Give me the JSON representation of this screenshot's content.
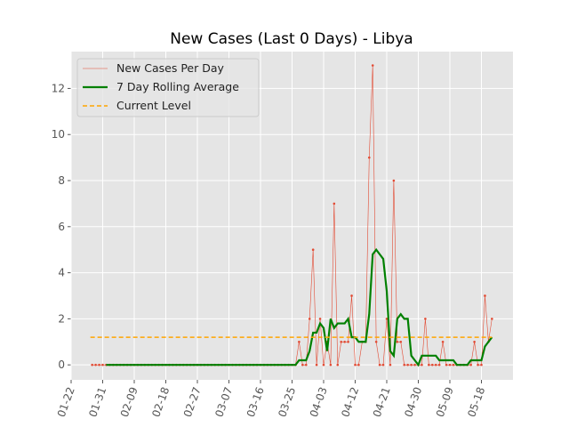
{
  "chart_data": {
    "type": "line",
    "title": "New Cases (Last 0 Days) - Libya",
    "x": [
      "01-28",
      "01-29",
      "01-30",
      "01-31",
      "02-01",
      "02-02",
      "02-03",
      "02-04",
      "02-05",
      "02-06",
      "02-07",
      "02-08",
      "02-09",
      "02-10",
      "02-11",
      "02-12",
      "02-13",
      "02-14",
      "02-15",
      "02-16",
      "02-17",
      "02-18",
      "02-19",
      "02-20",
      "02-21",
      "02-22",
      "02-23",
      "02-24",
      "02-25",
      "02-26",
      "02-27",
      "02-28",
      "02-29",
      "03-01",
      "03-02",
      "03-03",
      "03-04",
      "03-05",
      "03-06",
      "03-07",
      "03-08",
      "03-09",
      "03-10",
      "03-11",
      "03-12",
      "03-13",
      "03-14",
      "03-15",
      "03-16",
      "03-17",
      "03-18",
      "03-19",
      "03-20",
      "03-21",
      "03-22",
      "03-23",
      "03-24",
      "03-25",
      "03-26",
      "03-27",
      "03-28",
      "03-29",
      "03-30",
      "03-31",
      "04-01",
      "04-02",
      "04-03",
      "04-04",
      "04-05",
      "04-06",
      "04-07",
      "04-08",
      "04-09",
      "04-10",
      "04-11",
      "04-12",
      "04-13",
      "04-14",
      "04-15",
      "04-16",
      "04-17",
      "04-18",
      "04-19",
      "04-20",
      "04-21",
      "04-22",
      "04-23",
      "04-24",
      "04-25",
      "04-26",
      "04-27",
      "04-28",
      "04-29",
      "04-30",
      "05-01",
      "05-02",
      "05-03",
      "05-04",
      "05-05",
      "05-06",
      "05-07",
      "05-08",
      "05-09",
      "05-10",
      "05-11",
      "05-12",
      "05-13",
      "05-14",
      "05-15",
      "05-16",
      "05-17",
      "05-18",
      "05-19",
      "05-20",
      "05-21"
    ],
    "series": [
      {
        "name": "New Cases Per Day",
        "color": "#e24a33",
        "values": [
          0,
          0,
          0,
          0,
          0,
          0,
          0,
          0,
          0,
          0,
          0,
          0,
          0,
          0,
          0,
          0,
          0,
          0,
          0,
          0,
          0,
          0,
          0,
          0,
          0,
          0,
          0,
          0,
          0,
          0,
          0,
          0,
          0,
          0,
          0,
          0,
          0,
          0,
          0,
          0,
          0,
          0,
          0,
          0,
          0,
          0,
          0,
          0,
          0,
          0,
          0,
          0,
          0,
          0,
          0,
          0,
          0,
          0,
          0,
          1,
          0,
          0,
          2,
          5,
          0,
          2,
          0,
          1,
          0,
          7,
          0,
          1,
          1,
          1,
          3,
          0,
          0,
          1,
          1,
          9,
          13,
          1,
          0,
          0,
          2,
          0,
          8,
          1,
          1,
          0,
          0,
          0,
          0,
          0,
          0,
          2,
          0,
          0,
          0,
          0,
          1,
          0,
          0,
          0,
          0,
          0,
          0,
          0,
          0,
          1,
          0,
          0,
          3,
          1,
          2
        ]
      },
      {
        "name": "7 Day Rolling Average",
        "color": "green",
        "values": [
          null,
          null,
          null,
          null,
          0,
          0,
          0,
          0,
          0,
          0,
          0,
          0,
          0,
          0,
          0,
          0,
          0,
          0,
          0,
          0,
          0,
          0,
          0,
          0,
          0,
          0,
          0,
          0,
          0,
          0,
          0,
          0,
          0,
          0,
          0,
          0,
          0,
          0,
          0,
          0,
          0,
          0,
          0,
          0,
          0,
          0,
          0,
          0,
          0,
          0,
          0,
          0,
          0,
          0,
          0,
          0,
          0,
          0,
          0,
          0.2,
          0.2,
          0.2,
          0.6,
          1.4,
          1.4,
          1.8,
          1.6,
          0.6,
          2.0,
          1.6,
          1.8,
          1.8,
          1.8,
          2.0,
          1.2,
          1.2,
          1.0,
          1.0,
          1.0,
          2.2,
          4.8,
          5.0,
          4.8,
          4.6,
          3.2,
          0.6,
          0.4,
          2.0,
          2.2,
          2.0,
          2.0,
          0.4,
          0.2,
          0,
          0.4,
          0.4,
          0.4,
          0.4,
          0.4,
          0.2,
          0.2,
          0.2,
          0.2,
          0.2,
          0,
          0,
          0,
          0,
          0.2,
          0.2,
          0.2,
          0.2,
          0.8,
          1.0,
          1.2
        ]
      },
      {
        "name": "Current Level",
        "color": "orange",
        "value": 1.2,
        "dashed": true
      }
    ],
    "xlim": [
      "01-22",
      "05-27"
    ],
    "xticks": [
      "01-22",
      "01-31",
      "02-09",
      "02-18",
      "02-27",
      "03-07",
      "03-16",
      "03-25",
      "04-03",
      "04-12",
      "04-21",
      "04-30",
      "05-09",
      "05-18"
    ],
    "ylim": [
      -0.65,
      13.6
    ],
    "yticks": [
      0,
      2,
      4,
      6,
      8,
      10,
      12
    ],
    "grid": true,
    "legend": "upper left"
  }
}
